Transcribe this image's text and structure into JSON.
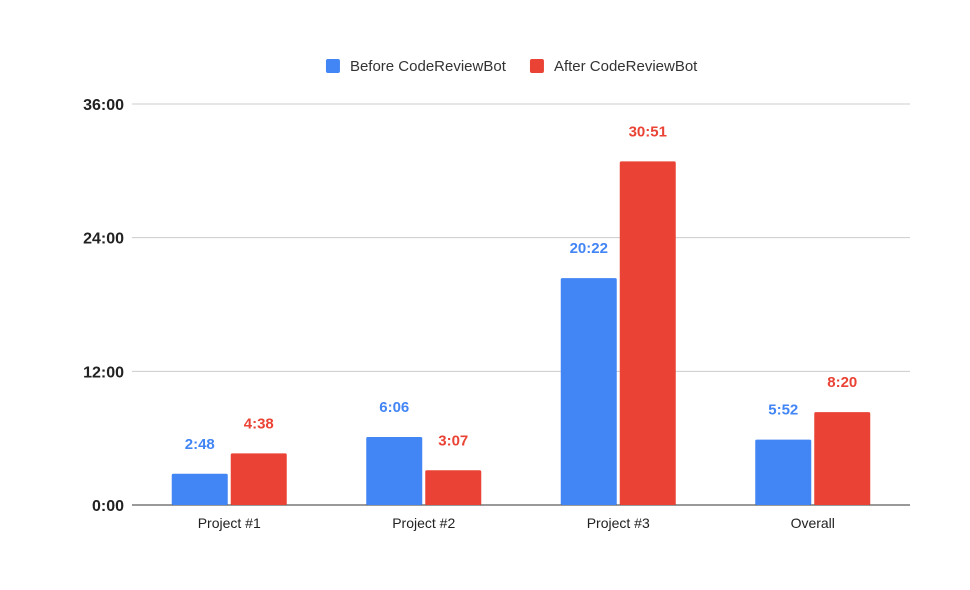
{
  "chart_data": {
    "type": "bar",
    "categories": [
      "Project #1",
      "Project #2",
      "Project #3",
      "Overall"
    ],
    "series": [
      {
        "name": "Before CodeReviewBot",
        "color": "#4285F4",
        "values": [
          168,
          366,
          1222,
          352
        ],
        "labels": [
          "2:48",
          "6:06",
          "20:22",
          "5:52"
        ]
      },
      {
        "name": "After CodeReviewBot",
        "color": "#EA4335",
        "values": [
          278,
          187,
          1851,
          500
        ],
        "labels": [
          "4:38",
          "3:07",
          "30:51",
          "8:20"
        ]
      }
    ],
    "ylim": [
      0,
      2160
    ],
    "yticks": [
      {
        "value": 0,
        "label": "0:00"
      },
      {
        "value": 720,
        "label": "12:00"
      },
      {
        "value": 1440,
        "label": "24:00"
      },
      {
        "value": 2160,
        "label": "36:00"
      }
    ],
    "grid": true,
    "legend_position": "top-center",
    "title": "",
    "xlabel": "",
    "ylabel": ""
  }
}
